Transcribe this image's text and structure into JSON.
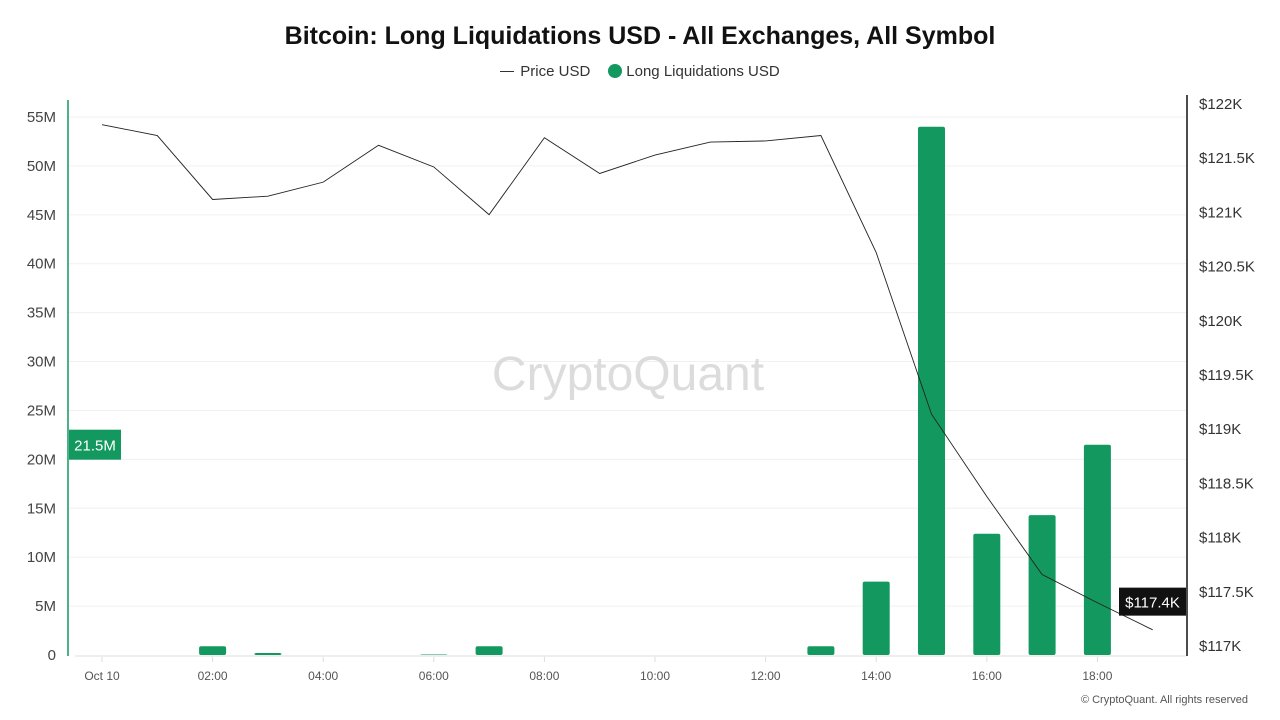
{
  "chart_data": {
    "type": "bar+line",
    "title": "Bitcoin: Long Liquidations USD - All Exchanges, All Symbol",
    "legend": [
      "Price USD",
      "Long Liquidations USD"
    ],
    "legend_position": "top",
    "x_ticks": [
      "Oct 10",
      "02:00",
      "04:00",
      "06:00",
      "08:00",
      "10:00",
      "12:00",
      "14:00",
      "16:00",
      "18:00"
    ],
    "hours": [
      0,
      1,
      2,
      3,
      4,
      5,
      6,
      7,
      8,
      9,
      10,
      11,
      12,
      13,
      14,
      15,
      16,
      17,
      18,
      19
    ],
    "series": [
      {
        "name": "Long Liquidations USD",
        "type": "bar",
        "axis": "left",
        "unit": "M USD",
        "color": "#13995f",
        "values": [
          0,
          0,
          0.9,
          0.2,
          0,
          0,
          0.05,
          0.9,
          0,
          0,
          0,
          0,
          0,
          0.9,
          7.5,
          54.0,
          12.4,
          14.3,
          21.5,
          null
        ]
      },
      {
        "name": "Price USD",
        "type": "line",
        "axis": "right",
        "unit": "K USD",
        "color": "#222222",
        "values": [
          121.8,
          121.7,
          121.11,
          121.14,
          121.27,
          121.61,
          121.41,
          120.97,
          121.68,
          121.35,
          121.52,
          121.64,
          121.65,
          121.7,
          120.62,
          119.13,
          118.37,
          117.65,
          117.39,
          117.14
        ]
      }
    ],
    "left_axis": {
      "ticks": [
        "0",
        "5M",
        "10M",
        "15M",
        "20M",
        "25M",
        "30M",
        "35M",
        "40M",
        "45M",
        "50M",
        "55M"
      ],
      "range": [
        0,
        55
      ]
    },
    "right_axis": {
      "ticks": [
        "$117K",
        "$117.5K",
        "$118K",
        "$118.5K",
        "$119K",
        "$119.5K",
        "$120K",
        "$120.5K",
        "$121K",
        "$121.5K",
        "$122K"
      ],
      "range": [
        117,
        122
      ]
    },
    "left_marker": "21.5M",
    "right_marker": "$117.4K",
    "grid": true,
    "watermark": "CryptoQuant"
  },
  "copyright": "© CryptoQuant. All rights reserved"
}
